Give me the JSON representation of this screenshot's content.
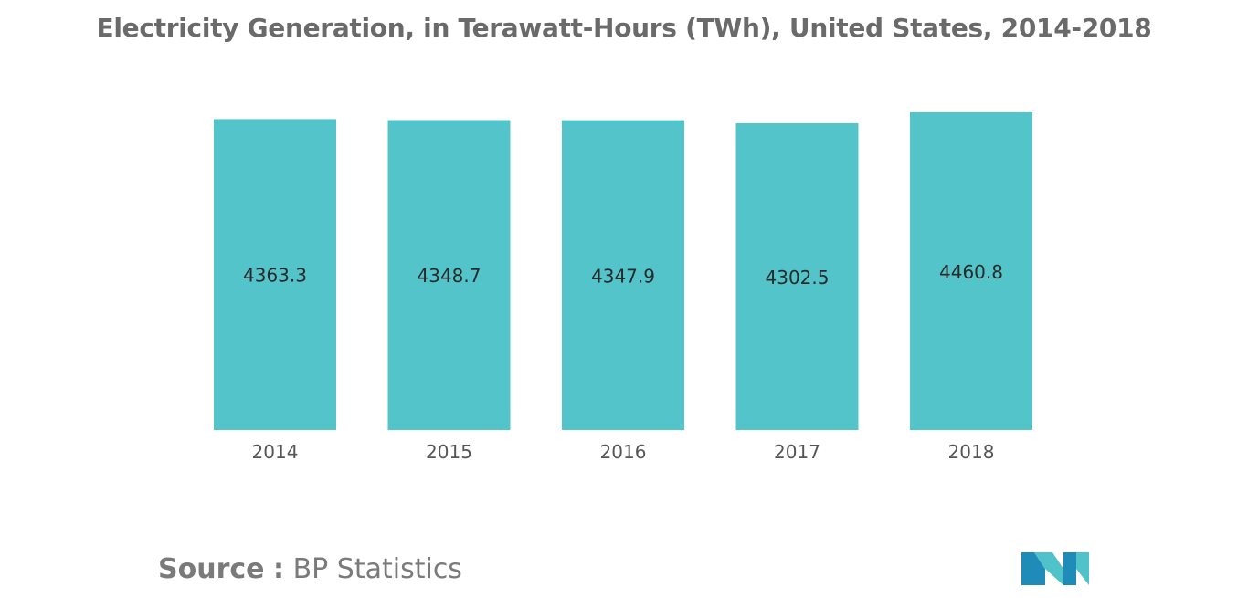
{
  "chart_data": {
    "type": "bar",
    "title": "Electricity Generation, in Terawatt-Hours (TWh), United States, 2014-2018",
    "categories": [
      "2014",
      "2015",
      "2016",
      "2017",
      "2018"
    ],
    "values": [
      4363.3,
      4348.7,
      4347.9,
      4302.5,
      4460.8
    ],
    "value_labels": [
      "4363.3",
      "4348.7",
      "4347.9",
      "4302.5",
      "4460.8"
    ],
    "xlabel": "",
    "ylabel": "",
    "grid": false,
    "legend": "none",
    "bar_color": "#52C4CA"
  },
  "source": {
    "label": "Source",
    "separator": ":",
    "text": "BP Statistics"
  },
  "logo": {
    "icon": "mordor-intelligence-logo",
    "colors": [
      "#1F8BB8",
      "#4FC3C9",
      "#1B5E8C"
    ]
  }
}
